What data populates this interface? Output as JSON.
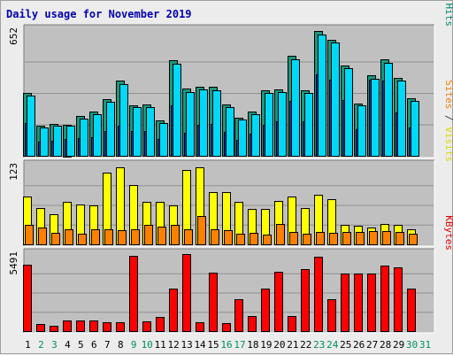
{
  "title": "Daily usage for November 2019",
  "chart_data": {
    "type": "bar",
    "categories": [
      "1",
      "2",
      "3",
      "4",
      "5",
      "6",
      "7",
      "8",
      "9",
      "10",
      "11",
      "12",
      "13",
      "14",
      "15",
      "16",
      "17",
      "18",
      "19",
      "20",
      "21",
      "22",
      "23",
      "24",
      "25",
      "26",
      "27",
      "28",
      "29",
      "30",
      "31"
    ],
    "weekend_days": [
      "2",
      "3",
      "9",
      "10",
      "16",
      "17",
      "23",
      "24",
      "30",
      "31"
    ],
    "panels": [
      {
        "ytick": "652",
        "ymax": 652,
        "legend": [
          {
            "text": "Pages",
            "color": "#00b0e0"
          },
          {
            "text": " / ",
            "color": "#404040"
          },
          {
            "text": "Files",
            "color": "#0060c0"
          },
          {
            "text": " / ",
            "color": "#404040"
          },
          {
            "text": "Hits",
            "color": "#008870"
          }
        ],
        "series": [
          {
            "name": "Hits",
            "color": "#18987c",
            "values": [
              326,
              158,
              165,
              163,
              207,
              229,
              295,
              388,
              264,
              265,
              184,
              494,
              347,
              360,
              358,
              265,
              199,
              229,
              342,
              346,
              517,
              341,
              647,
              603,
              470,
              273,
              418,
              499,
              404,
              298,
              0
            ]
          },
          {
            "name": "Files",
            "color": "#1040c0",
            "values": [
              170,
              75,
              80,
              86,
              92,
              97,
              130,
              154,
              129,
              129,
              87,
              263,
              118,
              161,
              166,
              122,
              83,
              114,
              161,
              177,
              283,
              180,
              421,
              397,
              287,
              136,
              397,
              389,
              223,
              147,
              0
            ]
          },
          {
            "name": "Pages",
            "color": "#00d8f8",
            "values": [
              310,
              147,
              154,
              156,
              195,
              214,
              282,
              371,
              251,
              252,
              172,
              477,
              331,
              344,
              341,
              253,
              188,
              218,
              326,
              330,
              500,
              326,
              629,
              586,
              454,
              261,
              401,
              482,
              388,
              283,
              0
            ]
          }
        ]
      },
      {
        "ytick": "123",
        "ymax": 123,
        "legend": [
          {
            "text": "Sites",
            "color": "#f08000"
          },
          {
            "text": " / ",
            "color": "#404040"
          },
          {
            "text": "Visits",
            "color": "#d8d800"
          }
        ],
        "series": [
          {
            "name": "Visits",
            "color": "#ffff00",
            "values": [
              74,
              57,
              47,
              66,
              62,
              61,
              112,
              120,
              92,
              66,
              67,
              61,
              116,
              120,
              82,
              81,
              67,
              55,
              55,
              68,
              75,
              56,
              77,
              70,
              31,
              29,
              26,
              32,
              31,
              23,
              0
            ]
          },
          {
            "name": "Sites",
            "color": "#ff8000",
            "values": [
              31,
              26,
              18,
              24,
              17,
              23,
              23,
              22,
              23,
              30,
              27,
              31,
              24,
              44,
              24,
              22,
              16,
              18,
              15,
              32,
              19,
              17,
              20,
              18,
              20,
              19,
              21,
              21,
              19,
              17,
              0
            ]
          }
        ]
      },
      {
        "ytick": "5491",
        "ymax": 5491,
        "legend": [
          {
            "text": "KBytes",
            "color": "#e00000"
          }
        ],
        "series": [
          {
            "name": "KBytes",
            "color": "#ff0000",
            "values": [
              4735,
              483,
              370,
              747,
              747,
              747,
              644,
              645,
              5372,
              681,
              1028,
              3040,
              5491,
              600,
              4191,
              553,
              2249,
              1058,
              3040,
              4200,
              1100,
              4400,
              5300,
              2300,
              4100,
              4100,
              4100,
              4700,
              4550,
              3040,
              0
            ]
          }
        ]
      }
    ]
  }
}
